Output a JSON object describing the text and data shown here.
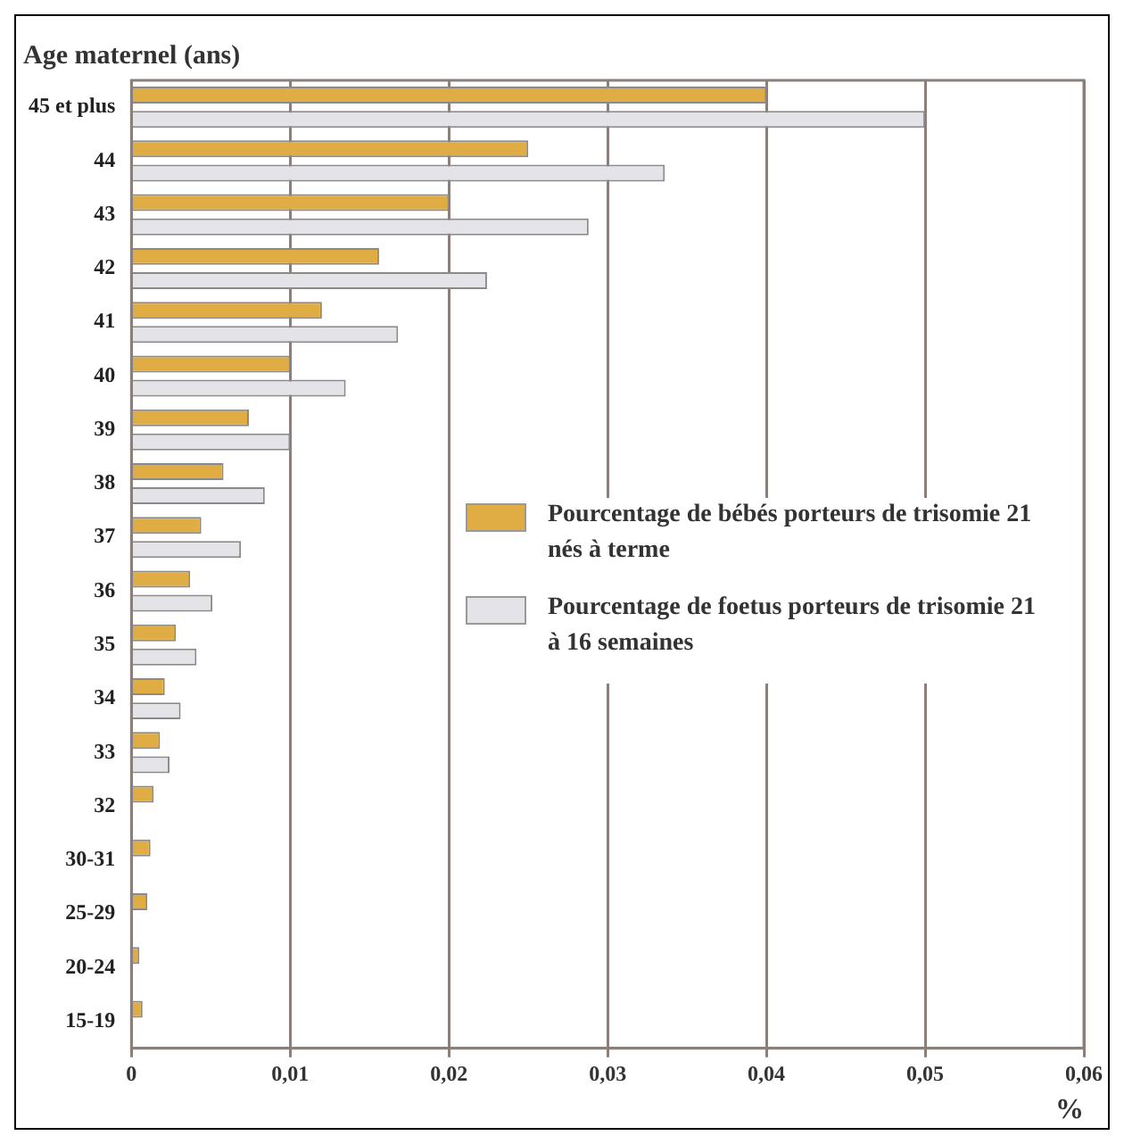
{
  "chart_data": {
    "type": "bar",
    "orientation": "horizontal",
    "ylabel": "Age maternel (ans)",
    "xlabel": "%",
    "categories": [
      "45 et plus",
      "44",
      "43",
      "42",
      "41",
      "40",
      "39",
      "38",
      "37",
      "36",
      "35",
      "34",
      "33",
      "32",
      "30-31",
      "25-29",
      "20-24",
      "15-19"
    ],
    "series": [
      {
        "name": "Pourcentage de bébés porteurs de trisomie 21 nés à terme",
        "color": "#e0ad45",
        "values": [
          0.04,
          0.025,
          0.02,
          0.0156,
          0.012,
          0.01,
          0.0074,
          0.0058,
          0.0044,
          0.0037,
          0.0028,
          0.0021,
          0.0018,
          0.0014,
          0.0012,
          0.001,
          0.0005,
          0.0007
        ]
      },
      {
        "name": "Pourcentage de foetus porteurs de trisomie 21 à 16 semaines",
        "color": "#e4e4e8",
        "values": [
          0.05,
          0.0336,
          0.0288,
          0.0224,
          0.0168,
          0.0135,
          0.01,
          0.0084,
          0.0069,
          0.0051,
          0.0041,
          0.0031,
          0.0024,
          null,
          null,
          null,
          null,
          null
        ]
      }
    ],
    "xlim": [
      0,
      0.06
    ],
    "xticks": [
      {
        "value": 0,
        "label": "0"
      },
      {
        "value": 0.01,
        "label": "0,01"
      },
      {
        "value": 0.02,
        "label": "0,02"
      },
      {
        "value": 0.03,
        "label": "0,03"
      },
      {
        "value": 0.04,
        "label": "0,04"
      },
      {
        "value": 0.05,
        "label": "0,05"
      },
      {
        "value": 0.06,
        "label": "0,06"
      }
    ],
    "grid": "x",
    "legend": "right"
  }
}
